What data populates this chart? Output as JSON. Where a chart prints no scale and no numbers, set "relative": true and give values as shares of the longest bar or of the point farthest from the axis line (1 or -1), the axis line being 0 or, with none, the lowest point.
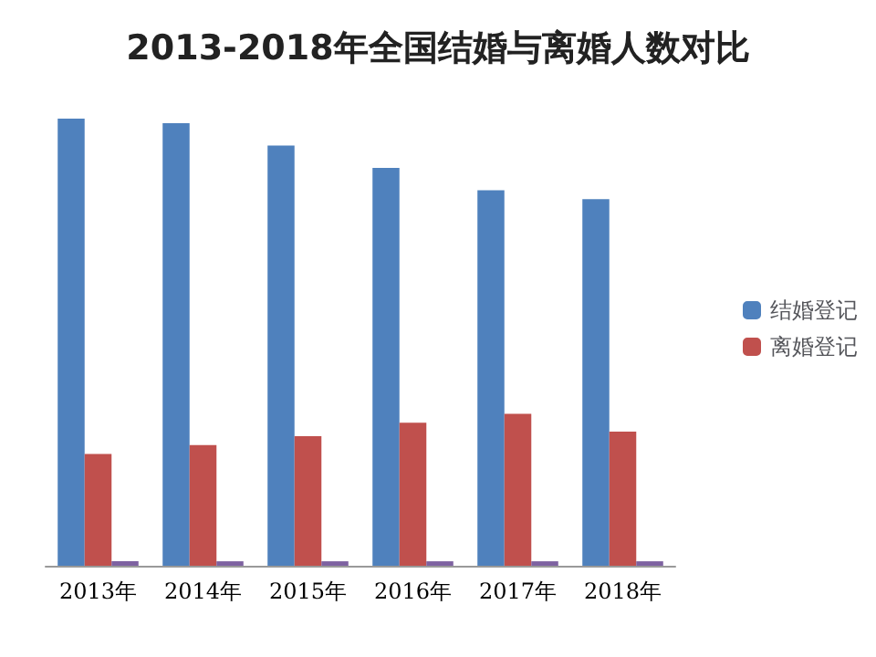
{
  "chart_data": {
    "type": "bar",
    "title": "2013-2018年全国结婚与离婚人数对比",
    "categories": [
      "2013年",
      "2014年",
      "2015年",
      "2016年",
      "2017年",
      "2018年"
    ],
    "relative": true,
    "legend": "right",
    "series": [
      {
        "name": "结婚登记",
        "color": "#4f81bd",
        "values": [
          1,
          0.99,
          0.94,
          0.89,
          0.84,
          0.82
        ]
      },
      {
        "name": "离婚登记",
        "color": "#c0504d",
        "values": [
          0.25,
          0.27,
          0.29,
          0.32,
          0.34,
          0.3
        ]
      },
      {
        "color": "#7e62a1",
        "values": [
          0.01,
          0.01,
          0.01,
          0.01,
          0.01,
          0.01
        ]
      }
    ]
  }
}
